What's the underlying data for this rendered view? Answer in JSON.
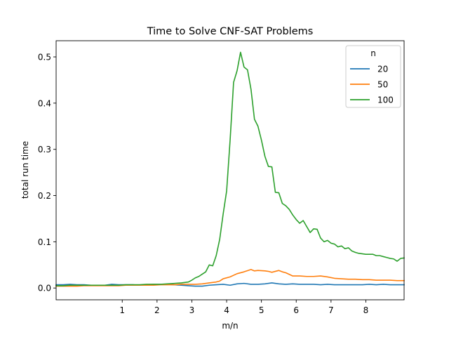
{
  "chart_data": {
    "type": "line",
    "title": "Time to Solve CNF-SAT Problems",
    "xlabel": "m/n",
    "ylabel": "total run time",
    "xlim": [
      -0.9,
      9.1
    ],
    "ylim": [
      -0.0255,
      0.535
    ],
    "grid": false,
    "legend": {
      "title": "n",
      "placement": "top-right"
    },
    "x_ticks": [
      {
        "value": 1,
        "label": "1"
      },
      {
        "value": 2,
        "label": "2"
      },
      {
        "value": 3,
        "label": "3"
      },
      {
        "value": 4,
        "label": "4"
      },
      {
        "value": 5,
        "label": "5"
      },
      {
        "value": 6,
        "label": "6"
      },
      {
        "value": 7,
        "label": "7"
      },
      {
        "value": 8,
        "label": "8"
      }
    ],
    "y_ticks": [
      {
        "value": 0.0,
        "label": "0.0"
      },
      {
        "value": 0.1,
        "label": "0.1"
      },
      {
        "value": 0.2,
        "label": "0.2"
      },
      {
        "value": 0.3,
        "label": "0.3"
      },
      {
        "value": 0.4,
        "label": "0.4"
      },
      {
        "value": 0.5,
        "label": "0.5"
      }
    ],
    "series": [
      {
        "name": "20",
        "color": "#1f77b4",
        "points": [
          [
            -0.9,
            0.007
          ],
          [
            -0.7,
            0.007
          ],
          [
            -0.5,
            0.008
          ],
          [
            -0.3,
            0.007
          ],
          [
            -0.1,
            0.007
          ],
          [
            0.1,
            0.006
          ],
          [
            0.3,
            0.006
          ],
          [
            0.5,
            0.006
          ],
          [
            0.7,
            0.008
          ],
          [
            0.9,
            0.007
          ],
          [
            1.1,
            0.007
          ],
          [
            1.3,
            0.007
          ],
          [
            1.5,
            0.006
          ],
          [
            1.7,
            0.007
          ],
          [
            1.9,
            0.008
          ],
          [
            2.1,
            0.008
          ],
          [
            2.3,
            0.008
          ],
          [
            2.5,
            0.007
          ],
          [
            2.7,
            0.006
          ],
          [
            2.9,
            0.005
          ],
          [
            3.1,
            0.004
          ],
          [
            3.3,
            0.004
          ],
          [
            3.5,
            0.006
          ],
          [
            3.7,
            0.007
          ],
          [
            3.9,
            0.008
          ],
          [
            4.1,
            0.006
          ],
          [
            4.3,
            0.009
          ],
          [
            4.5,
            0.01
          ],
          [
            4.7,
            0.008
          ],
          [
            4.9,
            0.008
          ],
          [
            5.1,
            0.009
          ],
          [
            5.3,
            0.011
          ],
          [
            5.5,
            0.009
          ],
          [
            5.7,
            0.008
          ],
          [
            5.9,
            0.009
          ],
          [
            6.1,
            0.008
          ],
          [
            6.3,
            0.008
          ],
          [
            6.5,
            0.008
          ],
          [
            6.7,
            0.007
          ],
          [
            6.9,
            0.008
          ],
          [
            7.1,
            0.007
          ],
          [
            7.3,
            0.007
          ],
          [
            7.5,
            0.007
          ],
          [
            7.7,
            0.007
          ],
          [
            7.9,
            0.007
          ],
          [
            8.1,
            0.008
          ],
          [
            8.3,
            0.007
          ],
          [
            8.5,
            0.008
          ],
          [
            8.7,
            0.007
          ],
          [
            8.9,
            0.007
          ],
          [
            9.1,
            0.007
          ]
        ]
      },
      {
        "name": "50",
        "color": "#ff7f0e",
        "points": [
          [
            -0.9,
            0.004
          ],
          [
            -0.7,
            0.004
          ],
          [
            -0.5,
            0.004
          ],
          [
            -0.3,
            0.004
          ],
          [
            -0.1,
            0.005
          ],
          [
            0.1,
            0.005
          ],
          [
            0.3,
            0.005
          ],
          [
            0.5,
            0.005
          ],
          [
            0.7,
            0.005
          ],
          [
            0.9,
            0.005
          ],
          [
            1.1,
            0.006
          ],
          [
            1.3,
            0.006
          ],
          [
            1.5,
            0.006
          ],
          [
            1.7,
            0.006
          ],
          [
            1.9,
            0.006
          ],
          [
            2.1,
            0.007
          ],
          [
            2.3,
            0.007
          ],
          [
            2.5,
            0.007
          ],
          [
            2.7,
            0.008
          ],
          [
            2.9,
            0.008
          ],
          [
            3.1,
            0.008
          ],
          [
            3.3,
            0.009
          ],
          [
            3.5,
            0.011
          ],
          [
            3.7,
            0.013
          ],
          [
            3.8,
            0.015
          ],
          [
            3.9,
            0.02
          ],
          [
            4.1,
            0.024
          ],
          [
            4.3,
            0.031
          ],
          [
            4.5,
            0.035
          ],
          [
            4.7,
            0.04
          ],
          [
            4.8,
            0.037
          ],
          [
            4.9,
            0.038
          ],
          [
            5.1,
            0.037
          ],
          [
            5.2,
            0.036
          ],
          [
            5.3,
            0.034
          ],
          [
            5.5,
            0.038
          ],
          [
            5.6,
            0.035
          ],
          [
            5.7,
            0.033
          ],
          [
            5.9,
            0.026
          ],
          [
            6.1,
            0.026
          ],
          [
            6.3,
            0.025
          ],
          [
            6.5,
            0.025
          ],
          [
            6.7,
            0.026
          ],
          [
            6.9,
            0.024
          ],
          [
            7.1,
            0.021
          ],
          [
            7.3,
            0.02
          ],
          [
            7.5,
            0.019
          ],
          [
            7.7,
            0.019
          ],
          [
            7.9,
            0.018
          ],
          [
            8.1,
            0.018
          ],
          [
            8.3,
            0.017
          ],
          [
            8.5,
            0.017
          ],
          [
            8.7,
            0.017
          ],
          [
            8.9,
            0.016
          ],
          [
            9.1,
            0.016
          ]
        ]
      },
      {
        "name": "100",
        "color": "#2ca02c",
        "points": [
          [
            -0.9,
            0.005
          ],
          [
            -0.7,
            0.005
          ],
          [
            -0.5,
            0.006
          ],
          [
            -0.3,
            0.006
          ],
          [
            -0.1,
            0.006
          ],
          [
            0.1,
            0.006
          ],
          [
            0.3,
            0.006
          ],
          [
            0.5,
            0.006
          ],
          [
            0.7,
            0.006
          ],
          [
            0.9,
            0.006
          ],
          [
            1.1,
            0.007
          ],
          [
            1.3,
            0.007
          ],
          [
            1.5,
            0.007
          ],
          [
            1.7,
            0.008
          ],
          [
            1.9,
            0.008
          ],
          [
            2.1,
            0.008
          ],
          [
            2.3,
            0.009
          ],
          [
            2.5,
            0.01
          ],
          [
            2.7,
            0.011
          ],
          [
            2.8,
            0.012
          ],
          [
            2.9,
            0.013
          ],
          [
            3.0,
            0.017
          ],
          [
            3.1,
            0.022
          ],
          [
            3.2,
            0.025
          ],
          [
            3.3,
            0.03
          ],
          [
            3.4,
            0.035
          ],
          [
            3.5,
            0.05
          ],
          [
            3.6,
            0.048
          ],
          [
            3.7,
            0.07
          ],
          [
            3.8,
            0.105
          ],
          [
            3.9,
            0.16
          ],
          [
            4.0,
            0.21
          ],
          [
            4.1,
            0.32
          ],
          [
            4.2,
            0.445
          ],
          [
            4.3,
            0.47
          ],
          [
            4.4,
            0.51
          ],
          [
            4.5,
            0.478
          ],
          [
            4.6,
            0.472
          ],
          [
            4.7,
            0.43
          ],
          [
            4.8,
            0.365
          ],
          [
            4.9,
            0.35
          ],
          [
            5.0,
            0.32
          ],
          [
            5.1,
            0.285
          ],
          [
            5.2,
            0.263
          ],
          [
            5.3,
            0.262
          ],
          [
            5.4,
            0.207
          ],
          [
            5.5,
            0.206
          ],
          [
            5.6,
            0.183
          ],
          [
            5.7,
            0.178
          ],
          [
            5.8,
            0.17
          ],
          [
            5.9,
            0.158
          ],
          [
            6.0,
            0.148
          ],
          [
            6.1,
            0.14
          ],
          [
            6.2,
            0.146
          ],
          [
            6.3,
            0.133
          ],
          [
            6.4,
            0.12
          ],
          [
            6.5,
            0.128
          ],
          [
            6.6,
            0.127
          ],
          [
            6.7,
            0.108
          ],
          [
            6.8,
            0.1
          ],
          [
            6.9,
            0.103
          ],
          [
            7.0,
            0.097
          ],
          [
            7.1,
            0.095
          ],
          [
            7.2,
            0.089
          ],
          [
            7.3,
            0.091
          ],
          [
            7.4,
            0.085
          ],
          [
            7.5,
            0.087
          ],
          [
            7.6,
            0.08
          ],
          [
            7.7,
            0.077
          ],
          [
            7.8,
            0.075
          ],
          [
            8.0,
            0.073
          ],
          [
            8.2,
            0.073
          ],
          [
            8.3,
            0.07
          ],
          [
            8.4,
            0.07
          ],
          [
            8.5,
            0.068
          ],
          [
            8.6,
            0.066
          ],
          [
            8.7,
            0.064
          ],
          [
            8.8,
            0.063
          ],
          [
            8.9,
            0.058
          ],
          [
            9.0,
            0.064
          ],
          [
            9.1,
            0.065
          ]
        ]
      }
    ]
  }
}
